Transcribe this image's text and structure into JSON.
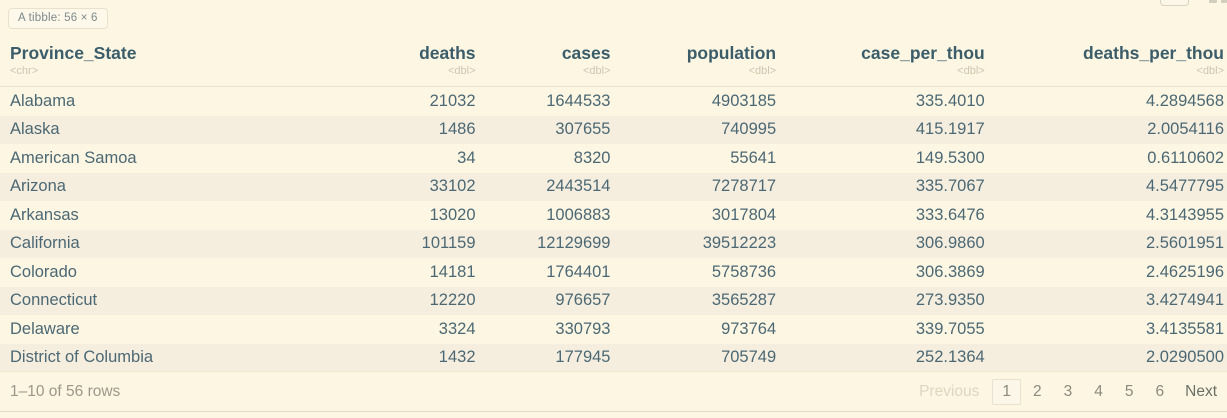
{
  "badge": {
    "label": "A tibble: 56 × 6"
  },
  "table": {
    "columns": [
      {
        "label": "Province_State",
        "type": "<chr>"
      },
      {
        "label": "deaths",
        "type": "<dbl>"
      },
      {
        "label": "cases",
        "type": "<dbl>"
      },
      {
        "label": "population",
        "type": "<dbl>"
      },
      {
        "label": "case_per_thou",
        "type": "<dbl>"
      },
      {
        "label": "deaths_per_thou",
        "type": "<dbl>"
      }
    ],
    "rows": [
      [
        "Alabama",
        "21032",
        "1644533",
        "4903185",
        "335.4010",
        "4.2894568"
      ],
      [
        "Alaska",
        "1486",
        "307655",
        "740995",
        "415.1917",
        "2.0054116"
      ],
      [
        "American Samoa",
        "34",
        "8320",
        "55641",
        "149.5300",
        "0.6110602"
      ],
      [
        "Arizona",
        "33102",
        "2443514",
        "7278717",
        "335.7067",
        "4.5477795"
      ],
      [
        "Arkansas",
        "13020",
        "1006883",
        "3017804",
        "333.6476",
        "4.3143955"
      ],
      [
        "California",
        "101159",
        "12129699",
        "39512223",
        "306.9860",
        "2.5601951"
      ],
      [
        "Colorado",
        "14181",
        "1764401",
        "5758736",
        "306.3869",
        "2.4625196"
      ],
      [
        "Connecticut",
        "12220",
        "976657",
        "3565287",
        "273.9350",
        "3.4274941"
      ],
      [
        "Delaware",
        "3324",
        "330793",
        "973764",
        "339.7055",
        "3.4135581"
      ],
      [
        "District of Columbia",
        "1432",
        "177945",
        "705749",
        "252.1364",
        "2.0290500"
      ]
    ]
  },
  "footer": {
    "row_info": "1–10 of 56 rows",
    "pagination": {
      "previous_label": "Previous",
      "pages": [
        "1",
        "2",
        "3",
        "4",
        "5",
        "6"
      ],
      "current_page": "1",
      "next_label": "Next"
    }
  },
  "colors": {
    "background": "#fdf6e3",
    "row_stripe": "#f5eedf",
    "header_text": "#3b5d6a",
    "body_text": "#4b6874",
    "type_label": "#cdc6b0",
    "divider": "#ebe3d0",
    "muted_text": "#9c978a",
    "disabled_text": "#ddd6c1",
    "page_number": "#8b8a7e",
    "current_page_border": "#e8e1ce"
  }
}
